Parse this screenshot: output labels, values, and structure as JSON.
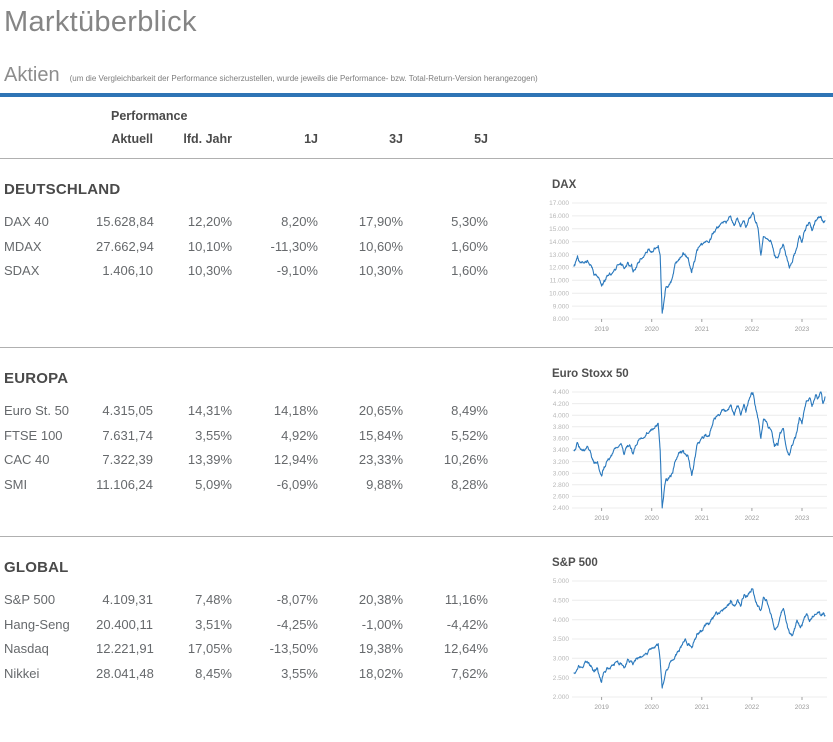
{
  "page": {
    "title": "Marktüberblick",
    "section_label": "Aktien",
    "section_note": "(um die Vergleichbarkeit der Performance sicherzustellen, wurde jeweils die Performance- bzw. Total-Return-Version herangezogen)"
  },
  "colors": {
    "accent_blue": "#2e74b5",
    "line_blue": "#2b79bd",
    "grid_gray": "#ececec"
  },
  "table": {
    "group_header": "Performance",
    "columns": [
      "Aktuell",
      "lfd. Jahr",
      "1J",
      "3J",
      "5J"
    ],
    "sections": [
      {
        "name": "DEUTSCHLAND",
        "rows": [
          {
            "label": "DAX 40",
            "values": [
              "15.628,84",
              "12,20%",
              "8,20%",
              "17,90%",
              "5,30%"
            ]
          },
          {
            "label": "MDAX",
            "values": [
              "27.662,94",
              "10,10%",
              "-11,30%",
              "10,60%",
              "1,60%"
            ]
          },
          {
            "label": "SDAX",
            "values": [
              "1.406,10",
              "10,30%",
              "-9,10%",
              "10,30%",
              "1,60%"
            ]
          }
        ]
      },
      {
        "name": "EUROPA",
        "rows": [
          {
            "label": "Euro St. 50",
            "values": [
              "4.315,05",
              "14,31%",
              "14,18%",
              "20,65%",
              "8,49%"
            ]
          },
          {
            "label": "FTSE 100",
            "values": [
              "7.631,74",
              "3,55%",
              "4,92%",
              "15,84%",
              "5,52%"
            ]
          },
          {
            "label": "CAC 40",
            "values": [
              "7.322,39",
              "13,39%",
              "12,94%",
              "23,33%",
              "10,26%"
            ]
          },
          {
            "label": "SMI",
            "values": [
              "11.106,24",
              "5,09%",
              "-6,09%",
              "9,88%",
              "8,28%"
            ]
          }
        ]
      },
      {
        "name": "GLOBAL",
        "rows": [
          {
            "label": "S&P 500",
            "values": [
              "4.109,31",
              "7,48%",
              "-8,07%",
              "20,38%",
              "11,16%"
            ]
          },
          {
            "label": "Hang-Seng",
            "values": [
              "20.400,11",
              "3,51%",
              "-4,25%",
              "-1,00%",
              "-4,42%"
            ]
          },
          {
            "label": "Nasdaq",
            "values": [
              "12.221,91",
              "17,05%",
              "-13,50%",
              "19,38%",
              "12,64%"
            ]
          },
          {
            "label": "Nikkei",
            "values": [
              "28.041,48",
              "8,45%",
              "3,55%",
              "18,02%",
              "7,62%"
            ]
          }
        ]
      }
    ]
  },
  "chart_data": [
    {
      "type": "line",
      "title": "DAX",
      "x_range": [
        2018.45,
        2023.5
      ],
      "x_ticks": [
        2019,
        2020,
        2021,
        2022,
        2023
      ],
      "y_range": [
        8000,
        17000
      ],
      "y_ticks": [
        {
          "v": 17000,
          "label": "17.000"
        },
        {
          "v": 16000,
          "label": "16.000"
        },
        {
          "v": 15000,
          "label": "15.000"
        },
        {
          "v": 14000,
          "label": "14.000"
        },
        {
          "v": 13000,
          "label": "13.000"
        },
        {
          "v": 12000,
          "label": "12.000"
        },
        {
          "v": 11000,
          "label": "11.000"
        },
        {
          "v": 10000,
          "label": "10.000"
        },
        {
          "v": 9000,
          "label": "9.000"
        },
        {
          "v": 8000,
          "label": "8.000"
        }
      ],
      "noise": 1300,
      "series": [
        [
          2018.45,
          12100
        ],
        [
          2018.52,
          12900
        ],
        [
          2018.58,
          12400
        ],
        [
          2018.65,
          12350
        ],
        [
          2018.72,
          12550
        ],
        [
          2018.8,
          12100
        ],
        [
          2018.85,
          11400
        ],
        [
          2018.92,
          11300
        ],
        [
          2019.0,
          10550
        ],
        [
          2019.05,
          11000
        ],
        [
          2019.12,
          11350
        ],
        [
          2019.2,
          11500
        ],
        [
          2019.3,
          12050
        ],
        [
          2019.38,
          12350
        ],
        [
          2019.45,
          11900
        ],
        [
          2019.52,
          12400
        ],
        [
          2019.6,
          12250
        ],
        [
          2019.63,
          11650
        ],
        [
          2019.72,
          12350
        ],
        [
          2019.8,
          12650
        ],
        [
          2019.9,
          13150
        ],
        [
          2019.98,
          13250
        ],
        [
          2020.05,
          13500
        ],
        [
          2020.13,
          13700
        ],
        [
          2020.17,
          12900
        ],
        [
          2020.21,
          8450
        ],
        [
          2020.28,
          10400
        ],
        [
          2020.35,
          10700
        ],
        [
          2020.42,
          11300
        ],
        [
          2020.48,
          12350
        ],
        [
          2020.55,
          12600
        ],
        [
          2020.62,
          13050
        ],
        [
          2020.68,
          12900
        ],
        [
          2020.73,
          12750
        ],
        [
          2020.8,
          11600
        ],
        [
          2020.85,
          12450
        ],
        [
          2020.9,
          13300
        ],
        [
          2020.97,
          13700
        ],
        [
          2021.03,
          13850
        ],
        [
          2021.08,
          14000
        ],
        [
          2021.15,
          13950
        ],
        [
          2021.22,
          14600
        ],
        [
          2021.3,
          15150
        ],
        [
          2021.38,
          15400
        ],
        [
          2021.45,
          15550
        ],
        [
          2021.52,
          15650
        ],
        [
          2021.58,
          15950
        ],
        [
          2021.65,
          15250
        ],
        [
          2021.72,
          15750
        ],
        [
          2021.78,
          15150
        ],
        [
          2021.85,
          15600
        ],
        [
          2021.88,
          15100
        ],
        [
          2021.95,
          15850
        ],
        [
          2022.02,
          16280
        ],
        [
          2022.08,
          15450
        ],
        [
          2022.12,
          15100
        ],
        [
          2022.18,
          12950
        ],
        [
          2022.23,
          14400
        ],
        [
          2022.3,
          14250
        ],
        [
          2022.38,
          14050
        ],
        [
          2022.45,
          12900
        ],
        [
          2022.52,
          12750
        ],
        [
          2022.57,
          13450
        ],
        [
          2022.63,
          13750
        ],
        [
          2022.7,
          12750
        ],
        [
          2022.75,
          11950
        ],
        [
          2022.82,
          12650
        ],
        [
          2022.88,
          13300
        ],
        [
          2022.95,
          14450
        ],
        [
          2023.0,
          13950
        ],
        [
          2023.05,
          14800
        ],
        [
          2023.1,
          15250
        ],
        [
          2023.15,
          15500
        ],
        [
          2023.2,
          14850
        ],
        [
          2023.27,
          15650
        ],
        [
          2023.33,
          15850
        ],
        [
          2023.38,
          15950
        ],
        [
          2023.42,
          15550
        ],
        [
          2023.46,
          15630
        ]
      ]
    },
    {
      "type": "line",
      "title": "Euro Stoxx 50",
      "x_range": [
        2018.45,
        2023.5
      ],
      "x_ticks": [
        2019,
        2020,
        2021,
        2022,
        2023
      ],
      "y_range": [
        2400,
        4400
      ],
      "y_ticks": [
        {
          "v": 4400,
          "label": "4.400"
        },
        {
          "v": 4200,
          "label": "4.200"
        },
        {
          "v": 4000,
          "label": "4.000"
        },
        {
          "v": 3800,
          "label": "3.800"
        },
        {
          "v": 3600,
          "label": "3.600"
        },
        {
          "v": 3400,
          "label": "3.400"
        },
        {
          "v": 3200,
          "label": "3.200"
        },
        {
          "v": 3000,
          "label": "3.000"
        },
        {
          "v": 2800,
          "label": "2.800"
        },
        {
          "v": 2600,
          "label": "2.600"
        },
        {
          "v": 2400,
          "label": "2.400"
        }
      ],
      "noise": 300,
      "series": [
        [
          2018.45,
          3390
        ],
        [
          2018.52,
          3530
        ],
        [
          2018.58,
          3410
        ],
        [
          2018.65,
          3400
        ],
        [
          2018.72,
          3460
        ],
        [
          2018.8,
          3280
        ],
        [
          2018.85,
          3170
        ],
        [
          2018.92,
          3200
        ],
        [
          2019.0,
          2950
        ],
        [
          2019.05,
          3110
        ],
        [
          2019.12,
          3220
        ],
        [
          2019.2,
          3300
        ],
        [
          2019.3,
          3440
        ],
        [
          2019.38,
          3500
        ],
        [
          2019.45,
          3320
        ],
        [
          2019.52,
          3480
        ],
        [
          2019.6,
          3420
        ],
        [
          2019.63,
          3330
        ],
        [
          2019.72,
          3530
        ],
        [
          2019.8,
          3600
        ],
        [
          2019.9,
          3700
        ],
        [
          2019.98,
          3750
        ],
        [
          2020.05,
          3770
        ],
        [
          2020.13,
          3860
        ],
        [
          2020.17,
          3390
        ],
        [
          2020.21,
          2400
        ],
        [
          2020.28,
          2880
        ],
        [
          2020.35,
          2930
        ],
        [
          2020.42,
          3000
        ],
        [
          2020.48,
          3230
        ],
        [
          2020.55,
          3350
        ],
        [
          2020.62,
          3380
        ],
        [
          2020.68,
          3320
        ],
        [
          2020.73,
          3280
        ],
        [
          2020.8,
          2960
        ],
        [
          2020.85,
          3200
        ],
        [
          2020.9,
          3470
        ],
        [
          2020.97,
          3560
        ],
        [
          2021.03,
          3600
        ],
        [
          2021.08,
          3670
        ],
        [
          2021.15,
          3640
        ],
        [
          2021.22,
          3850
        ],
        [
          2021.3,
          3980
        ],
        [
          2021.38,
          4050
        ],
        [
          2021.45,
          4070
        ],
        [
          2021.52,
          4100
        ],
        [
          2021.58,
          4180
        ],
        [
          2021.65,
          4000
        ],
        [
          2021.72,
          4160
        ],
        [
          2021.78,
          4000
        ],
        [
          2021.85,
          4180
        ],
        [
          2021.88,
          4050
        ],
        [
          2021.95,
          4280
        ],
        [
          2022.02,
          4390
        ],
        [
          2022.08,
          4100
        ],
        [
          2022.12,
          3950
        ],
        [
          2022.18,
          3600
        ],
        [
          2022.23,
          3920
        ],
        [
          2022.3,
          3870
        ],
        [
          2022.38,
          3750
        ],
        [
          2022.45,
          3460
        ],
        [
          2022.52,
          3480
        ],
        [
          2022.57,
          3700
        ],
        [
          2022.63,
          3770
        ],
        [
          2022.7,
          3400
        ],
        [
          2022.75,
          3310
        ],
        [
          2022.82,
          3500
        ],
        [
          2022.88,
          3650
        ],
        [
          2022.95,
          3960
        ],
        [
          2023.0,
          3850
        ],
        [
          2023.05,
          4100
        ],
        [
          2023.1,
          4250
        ],
        [
          2023.15,
          4300
        ],
        [
          2023.2,
          4150
        ],
        [
          2023.27,
          4350
        ],
        [
          2023.33,
          4300
        ],
        [
          2023.38,
          4400
        ],
        [
          2023.42,
          4200
        ],
        [
          2023.46,
          4315
        ]
      ]
    },
    {
      "type": "line",
      "title": "S&P 500",
      "x_range": [
        2018.45,
        2023.5
      ],
      "x_ticks": [
        2019,
        2020,
        2021,
        2022,
        2023
      ],
      "y_range": [
        2000,
        5000
      ],
      "y_ticks": [
        {
          "v": 5000,
          "label": "5.000"
        },
        {
          "v": 4500,
          "label": "4.500"
        },
        {
          "v": 4000,
          "label": "4.000"
        },
        {
          "v": 3500,
          "label": "3.500"
        },
        {
          "v": 3000,
          "label": "3.000"
        },
        {
          "v": 2500,
          "label": "2.500"
        },
        {
          "v": 2000,
          "label": "2.000"
        }
      ],
      "noise": 420,
      "series": [
        [
          2018.45,
          2620
        ],
        [
          2018.52,
          2720
        ],
        [
          2018.58,
          2780
        ],
        [
          2018.65,
          2840
        ],
        [
          2018.72,
          2900
        ],
        [
          2018.8,
          2780
        ],
        [
          2018.85,
          2650
        ],
        [
          2018.92,
          2750
        ],
        [
          2019.0,
          2380
        ],
        [
          2019.05,
          2650
        ],
        [
          2019.12,
          2750
        ],
        [
          2019.2,
          2820
        ],
        [
          2019.3,
          2920
        ],
        [
          2019.38,
          2880
        ],
        [
          2019.45,
          2750
        ],
        [
          2019.52,
          2980
        ],
        [
          2019.6,
          2920
        ],
        [
          2019.63,
          2850
        ],
        [
          2019.72,
          2980
        ],
        [
          2019.8,
          3030
        ],
        [
          2019.9,
          3120
        ],
        [
          2019.98,
          3230
        ],
        [
          2020.05,
          3290
        ],
        [
          2020.13,
          3380
        ],
        [
          2020.17,
          2950
        ],
        [
          2020.21,
          2230
        ],
        [
          2020.28,
          2650
        ],
        [
          2020.35,
          2830
        ],
        [
          2020.42,
          2950
        ],
        [
          2020.48,
          3100
        ],
        [
          2020.55,
          3180
        ],
        [
          2020.62,
          3390
        ],
        [
          2020.68,
          3480
        ],
        [
          2020.73,
          3350
        ],
        [
          2020.8,
          3270
        ],
        [
          2020.85,
          3450
        ],
        [
          2020.9,
          3620
        ],
        [
          2020.97,
          3720
        ],
        [
          2021.03,
          3780
        ],
        [
          2021.08,
          3880
        ],
        [
          2021.15,
          3900
        ],
        [
          2021.22,
          4020
        ],
        [
          2021.3,
          4180
        ],
        [
          2021.38,
          4220
        ],
        [
          2021.45,
          4300
        ],
        [
          2021.52,
          4370
        ],
        [
          2021.58,
          4500
        ],
        [
          2021.65,
          4350
        ],
        [
          2021.72,
          4520
        ],
        [
          2021.78,
          4350
        ],
        [
          2021.85,
          4650
        ],
        [
          2021.88,
          4570
        ],
        [
          2021.95,
          4700
        ],
        [
          2022.02,
          4790
        ],
        [
          2022.08,
          4450
        ],
        [
          2022.12,
          4350
        ],
        [
          2022.18,
          4250
        ],
        [
          2022.23,
          4580
        ],
        [
          2022.3,
          4480
        ],
        [
          2022.38,
          4150
        ],
        [
          2022.45,
          3750
        ],
        [
          2022.52,
          3830
        ],
        [
          2022.57,
          4100
        ],
        [
          2022.63,
          4290
        ],
        [
          2022.7,
          3900
        ],
        [
          2022.75,
          3650
        ],
        [
          2022.8,
          3580
        ],
        [
          2022.85,
          3770
        ],
        [
          2022.9,
          3990
        ],
        [
          2022.95,
          3850
        ],
        [
          2023.0,
          3840
        ],
        [
          2023.05,
          4070
        ],
        [
          2023.1,
          4150
        ],
        [
          2023.15,
          3950
        ],
        [
          2023.2,
          4050
        ],
        [
          2023.27,
          4130
        ],
        [
          2023.33,
          4180
        ],
        [
          2023.38,
          4100
        ],
        [
          2023.42,
          4160
        ],
        [
          2023.46,
          4109
        ]
      ]
    }
  ]
}
